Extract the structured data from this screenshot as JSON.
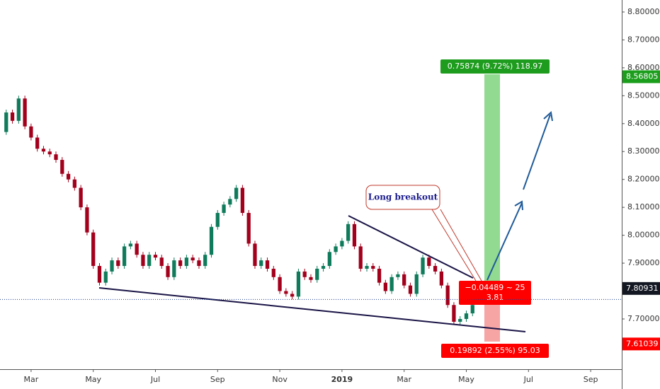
{
  "chart_data": {
    "type": "candlestick",
    "x": [
      1.0,
      1.2,
      1.4,
      1.6,
      1.8,
      2.0,
      2.2,
      2.4,
      2.6,
      2.8,
      3.0,
      3.2,
      3.4,
      3.6,
      3.8,
      4.0,
      4.2,
      4.4,
      4.6,
      4.8,
      5.0,
      5.2,
      5.4,
      5.6,
      5.8,
      6.0,
      6.2,
      6.4,
      6.6,
      6.8,
      7.0,
      7.2,
      7.4,
      7.6,
      7.8,
      8.0,
      8.2,
      8.4,
      8.6,
      8.8,
      9.0,
      9.2,
      9.4,
      9.6,
      9.8,
      10.0,
      10.2,
      10.4,
      10.6,
      10.8,
      11.0,
      11.2,
      11.4,
      11.6,
      11.8,
      12.0,
      12.2,
      12.4,
      12.6,
      12.8,
      13.0,
      13.2,
      13.4,
      13.6,
      13.8,
      14.0,
      14.2,
      14.4,
      14.6,
      14.8,
      15.0,
      15.2,
      15.4,
      15.6,
      15.8,
      16.0,
      16.2
    ],
    "close": [
      8.37,
      8.44,
      8.41,
      8.49,
      8.39,
      8.35,
      8.31,
      8.3,
      8.29,
      8.27,
      8.22,
      8.2,
      8.17,
      8.1,
      8.01,
      7.89,
      7.83,
      7.87,
      7.91,
      7.89,
      7.96,
      7.97,
      7.93,
      7.89,
      7.93,
      7.92,
      7.89,
      7.85,
      7.91,
      7.89,
      7.92,
      7.91,
      7.89,
      7.93,
      8.03,
      8.08,
      8.11,
      8.13,
      8.17,
      8.08,
      7.97,
      7.89,
      7.91,
      7.88,
      7.85,
      7.8,
      7.79,
      7.78,
      7.87,
      7.85,
      7.84,
      7.88,
      7.89,
      7.94,
      7.96,
      7.98,
      8.04,
      7.96,
      7.88,
      7.89,
      7.88,
      7.83,
      7.8,
      7.85,
      7.86,
      7.82,
      7.79,
      7.86,
      7.92,
      7.89,
      7.87,
      7.82,
      7.75,
      7.69,
      7.7,
      7.72,
      7.75
    ],
    "up_color": "#0f7b5a",
    "down_color": "#a3001c",
    "xlim": [
      1,
      21
    ],
    "xticks": [
      {
        "value": 2,
        "label": "Mar"
      },
      {
        "value": 4,
        "label": "May"
      },
      {
        "value": 6,
        "label": "Jul"
      },
      {
        "value": 8,
        "label": "Sep"
      },
      {
        "value": 10,
        "label": "Nov"
      },
      {
        "value": 12,
        "label": "2019"
      },
      {
        "value": 14,
        "label": "Mar"
      },
      {
        "value": 16,
        "label": "May"
      },
      {
        "value": 18,
        "label": "Jul"
      },
      {
        "value": 20,
        "label": "Sep"
      }
    ],
    "ylim": [
      7.52,
      8.843
    ],
    "yticks": [
      {
        "value": 7.7,
        "label": "7.70000"
      },
      {
        "value": 7.9,
        "label": "7.90000"
      },
      {
        "value": 8.0,
        "label": "8.00000"
      },
      {
        "value": 8.1,
        "label": "8.10000"
      },
      {
        "value": 8.2,
        "label": "8.20000"
      },
      {
        "value": 8.3,
        "label": "8.30000"
      },
      {
        "value": 8.4,
        "label": "8.40000"
      },
      {
        "value": 8.5,
        "label": "8.50000"
      },
      {
        "value": 8.6,
        "label": "8.60000"
      },
      {
        "value": 8.7,
        "label": "8.70000"
      },
      {
        "value": 8.8,
        "label": "8.80000"
      }
    ],
    "price_tags": [
      {
        "value": 8.56805,
        "label": "8.56805",
        "color": "#1b9e1b"
      },
      {
        "value": 7.80931,
        "label": "7.80931",
        "color": "#131722"
      },
      {
        "value": 7.61039,
        "label": "7.61039",
        "color": "#ff0000"
      }
    ],
    "current_price_line": 7.77,
    "annotations": {
      "target": "0.75874 (9.72%) 118.97",
      "ratio": "−0.04489 ~ 25",
      "ratio_value": "3.81",
      "stop": "0.19892 (2.55%) 95.03",
      "note": "Long breakout"
    }
  }
}
